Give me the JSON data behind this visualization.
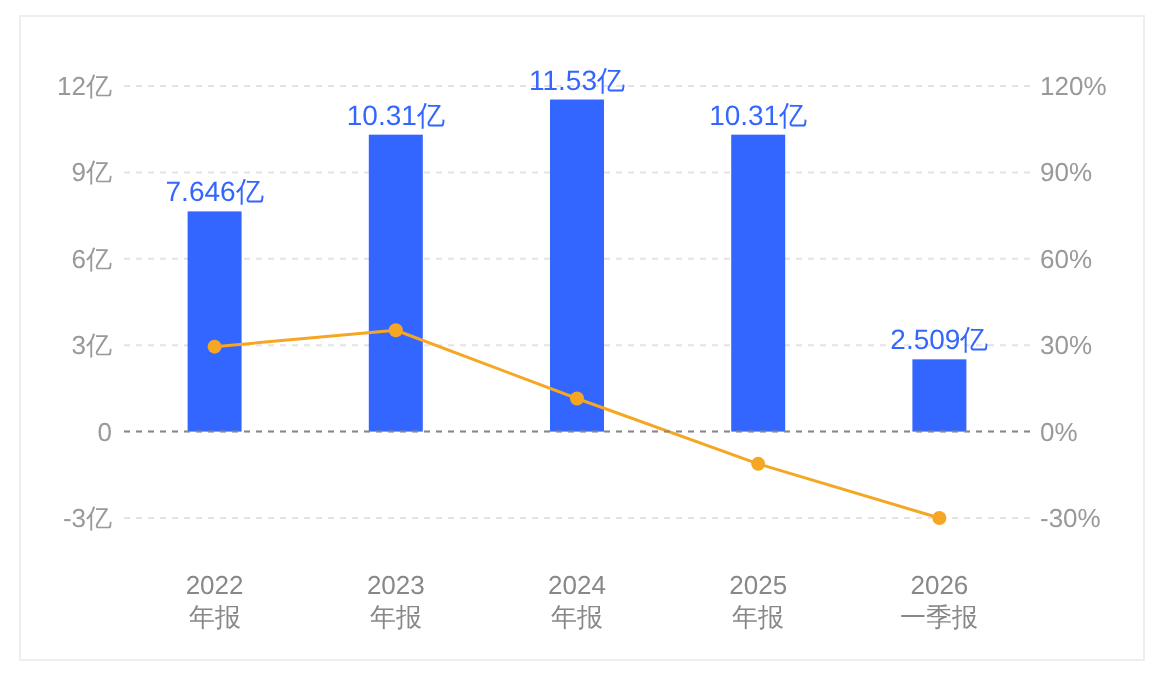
{
  "chart_data": {
    "type": "bar",
    "categories": [
      "2022\n年报",
      "2023\n年报",
      "2024\n年报",
      "2025\n年报",
      "2026\n一季报"
    ],
    "series": [
      {
        "color": "#3366ff",
        "values": [
          7.646,
          10.31,
          11.53,
          10.31,
          2.509
        ],
        "value_labels": [
          "7.646亿",
          "10.31亿",
          "11.53亿",
          "10.31亿",
          "2.509亿"
        ]
      },
      {
        "type": "line",
        "axis": "y2",
        "color": "#f5a623",
        "marker": "circle",
        "values": [
          29.5,
          35.2,
          11.5,
          -11.2,
          -30
        ]
      }
    ],
    "ylim": [
      -3,
      12
    ],
    "yticks": [
      {
        "value": -3,
        "label": "-3亿"
      },
      {
        "value": 0,
        "label": "0"
      },
      {
        "value": 3,
        "label": "3亿"
      },
      {
        "value": 6,
        "label": "6亿"
      },
      {
        "value": 9,
        "label": "9亿"
      },
      {
        "value": 12,
        "label": "12亿"
      }
    ],
    "y2lim": [
      -30,
      120
    ],
    "y2ticks": [
      {
        "value": -30,
        "label": "-30%"
      },
      {
        "value": 0,
        "label": "0%"
      },
      {
        "value": 30,
        "label": "30%"
      },
      {
        "value": 60,
        "label": "60%"
      },
      {
        "value": 90,
        "label": "90%"
      },
      {
        "value": 120,
        "label": "120%"
      }
    ],
    "ref_lines": [
      {
        "axis": "y",
        "value": 0,
        "color": "#888888",
        "line_style": "dashed"
      }
    ],
    "grid": "y"
  }
}
